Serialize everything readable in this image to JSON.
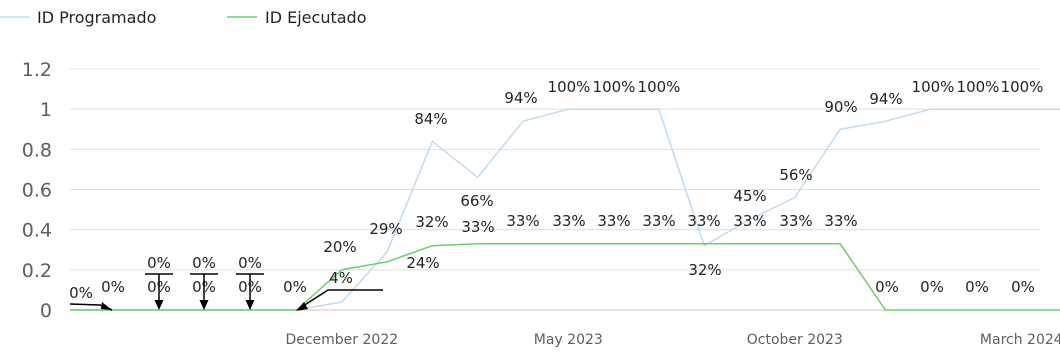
{
  "chart_data": {
    "type": "line",
    "title": "",
    "xlabel": "",
    "ylabel": "",
    "ylim": [
      0,
      1.2
    ],
    "y_ticks": [
      "0",
      "0.2",
      "0.4",
      "0.6",
      "0.8",
      "1",
      "1.2"
    ],
    "x_tick_labels": [
      "December 2022",
      "May 2023",
      "October 2023",
      "March 2024"
    ],
    "legend": "top-left",
    "grid": true,
    "x": [
      "2022-06",
      "2022-07",
      "2022-08",
      "2022-09",
      "2022-10",
      "2022-11",
      "2022-12",
      "2023-01",
      "2023-02",
      "2023-03",
      "2023-04",
      "2023-05",
      "2023-06",
      "2023-07",
      "2023-08",
      "2023-09",
      "2023-10",
      "2023-11",
      "2023-12",
      "2024-01",
      "2024-02",
      "2024-03",
      "2024-04",
      "2024-05"
    ],
    "series": [
      {
        "name": "ID Programado",
        "color": "#c2dbef",
        "values": [
          0,
          0,
          0,
          0,
          0,
          0,
          0.04,
          0.29,
          0.84,
          0.66,
          0.94,
          1,
          1,
          1,
          0.32,
          0.45,
          0.56,
          0.9,
          0.94,
          1,
          1,
          1,
          1,
          1
        ],
        "labels": [
          "0%",
          "0%",
          "0%",
          "0%",
          "0%",
          "0%",
          "4%",
          "29%",
          "84%",
          "66%",
          "94%",
          "100%",
          "100%",
          "100%",
          "32%",
          "45%",
          "56%",
          "90%",
          "94%",
          "100%",
          "100%",
          "100%",
          "",
          ""
        ]
      },
      {
        "name": "ID Ejecutado",
        "color": "#6bcf6b",
        "values": [
          0,
          0,
          0,
          0,
          0,
          0,
          0.2,
          0.24,
          0.32,
          0.33,
          0.33,
          0.33,
          0.33,
          0.33,
          0.33,
          0.33,
          0.33,
          0.33,
          0,
          0,
          0,
          0,
          0,
          0
        ],
        "labels": [
          "0%",
          "0%",
          "0%",
          "0%",
          "0%",
          "0%",
          "20%",
          "24%",
          "32%",
          "33%",
          "33%",
          "33%",
          "33%",
          "33%",
          "33%",
          "33%",
          "33%",
          "33%",
          "0%",
          "0%",
          "0%",
          "0%",
          "",
          ""
        ]
      }
    ]
  }
}
